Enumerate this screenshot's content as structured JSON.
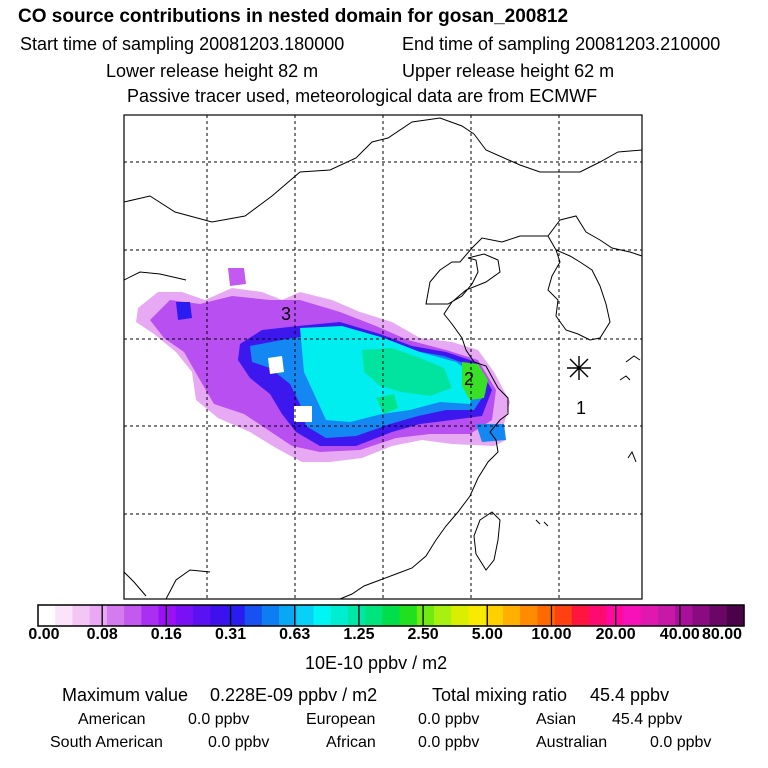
{
  "header": {
    "title": "CO  source contributions in nested domain for gosan_200812",
    "start_label": "Start time of sampling 20081203.180000",
    "end_label": "End time of sampling 20081203.210000",
    "lower_label": "Lower release height   82 m",
    "upper_label": "Upper release height   62 m",
    "tracer_note": "Passive tracer used, meteorological data are from ECMWF"
  },
  "map": {
    "source_labels": [
      "1",
      "2",
      "3"
    ],
    "receptor_marker": "asterisk-icon"
  },
  "colorbar": {
    "ticks": [
      "0.00",
      "0.08",
      "0.16",
      "0.31",
      "0.63",
      "1.25",
      "2.50",
      "5.00",
      "10.00",
      "20.00",
      "40.00",
      "80.00"
    ],
    "colors": [
      "#ffffff",
      "#fbe3fb",
      "#f3c6f5",
      "#e8a8f3",
      "#d57bf0",
      "#c359ee",
      "#aa2ff0",
      "#9a11f3",
      "#7a10f5",
      "#5a12f3",
      "#3d10ee",
      "#2a1bf0",
      "#1850f2",
      "#0d7ef2",
      "#0aa8f4",
      "#08d0f6",
      "#00f5f5",
      "#00eed0",
      "#00e8a8",
      "#00e47c",
      "#00de4c",
      "#20e020",
      "#70ea10",
      "#a8f010",
      "#d8f000",
      "#f8ea00",
      "#ffd000",
      "#ffb000",
      "#ff8c00",
      "#ff6a00",
      "#ff4010",
      "#ff1540",
      "#ff0a70",
      "#ff0aa0",
      "#f810b8",
      "#e018b0",
      "#c818a8",
      "#a8109a",
      "#8a0a80",
      "#6a0664",
      "#4c0248"
    ],
    "units": "10E-10 ppbv / m2"
  },
  "stats": {
    "max_label": "Maximum value",
    "max_value": "0.228E-09 ppbv / m2",
    "total_label": "Total mixing ratio",
    "total_value": "45.4 ppbv",
    "regions": [
      {
        "name": "American",
        "value": "0.0 ppbv"
      },
      {
        "name": "European",
        "value": "0.0 ppbv"
      },
      {
        "name": "Asian",
        "value": "45.4 ppbv"
      },
      {
        "name": "South American",
        "value": "0.0 ppbv"
      },
      {
        "name": "African",
        "value": "0.0 ppbv"
      },
      {
        "name": "Australian",
        "value": "0.0 ppbv"
      }
    ]
  }
}
